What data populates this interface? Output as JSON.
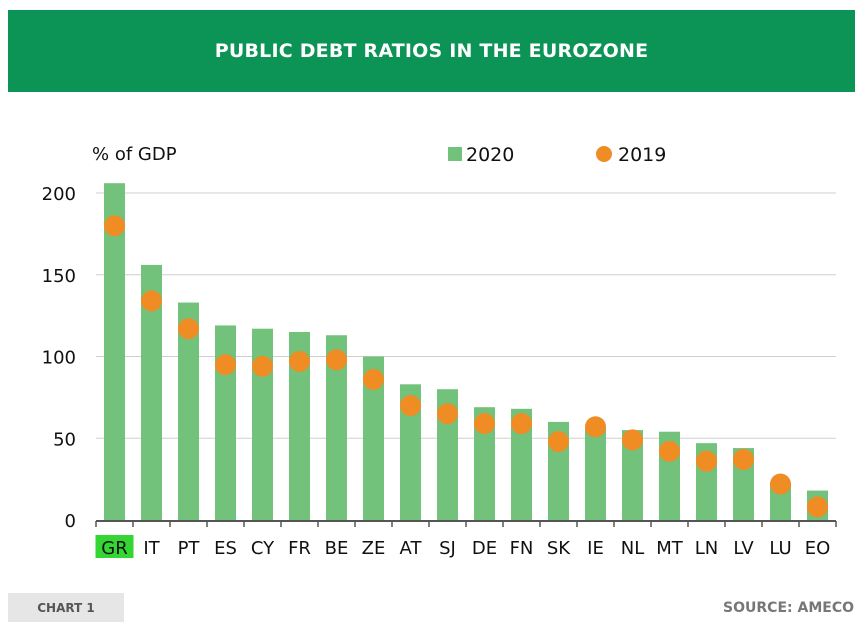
{
  "header": {
    "title": "PUBLIC DEBT RATIOS IN THE EUROZONE"
  },
  "chart_data": {
    "type": "bar",
    "title": "PUBLIC DEBT RATIOS IN THE EUROZONE",
    "ylabel": "% of GDP",
    "xlabel": "",
    "ylim": [
      0,
      200
    ],
    "yticks": [
      0,
      50,
      100,
      150,
      200
    ],
    "grid": true,
    "legend_position": "top",
    "categories": [
      "GR",
      "IT",
      "PT",
      "ES",
      "CY",
      "FR",
      "BE",
      "ZE",
      "AT",
      "SJ",
      "DE",
      "FN",
      "SK",
      "IE",
      "NL",
      "MT",
      "LN",
      "LV",
      "LU",
      "EO"
    ],
    "highlighted_category": "GR",
    "series": [
      {
        "name": "2020",
        "kind": "bar",
        "color": "#73c27c",
        "values": [
          206,
          156,
          133,
          119,
          117,
          115,
          113,
          100,
          83,
          80,
          69,
          68,
          60,
          56,
          55,
          54,
          47,
          44,
          22,
          18
        ]
      },
      {
        "name": "2019",
        "kind": "dot",
        "color": "#f08c24",
        "values": [
          180,
          134,
          117,
          95,
          94,
          97,
          98,
          86,
          70,
          65,
          59,
          59,
          48,
          57,
          49,
          42,
          36,
          37,
          22,
          8
        ]
      }
    ]
  },
  "colors": {
    "header_bg": "#0b9455",
    "bar_2020": "#73c27c",
    "dot_2019": "#f08c24",
    "highlight_label_bg": "#33d633",
    "gridline": "#cfcfcf"
  },
  "footer": {
    "chart_label": "CHART 1",
    "source": "SOURCE: AMECO"
  }
}
